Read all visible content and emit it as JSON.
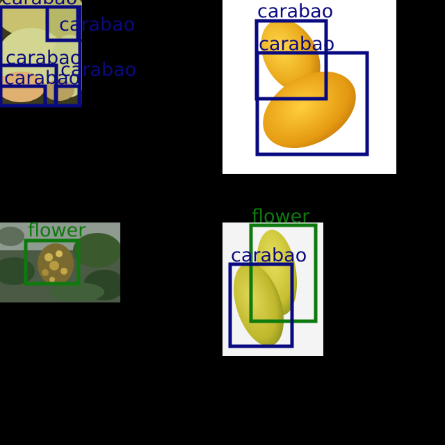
{
  "classes": {
    "carabao": {
      "label": "carabao",
      "color": "#0a0a80"
    },
    "flower": {
      "label": "flower",
      "color": "#0e7a0e"
    }
  },
  "detections": [
    {
      "name": "tile-1-label-1",
      "cls": "carabao"
    },
    {
      "name": "tile-1-label-2",
      "cls": "carabao"
    },
    {
      "name": "tile-1-label-3",
      "cls": "carabao"
    },
    {
      "name": "tile-1-label-4",
      "cls": "carabao"
    },
    {
      "name": "tile-1-label-5",
      "cls": "carabao"
    },
    {
      "name": "tile-2-label-1",
      "cls": "carabao"
    },
    {
      "name": "tile-2-label-2",
      "cls": "carabao"
    },
    {
      "name": "tile-3-label-1",
      "cls": "flower"
    },
    {
      "name": "tile-4-label-1",
      "cls": "flower"
    },
    {
      "name": "tile-4-label-2",
      "cls": "carabao"
    }
  ]
}
